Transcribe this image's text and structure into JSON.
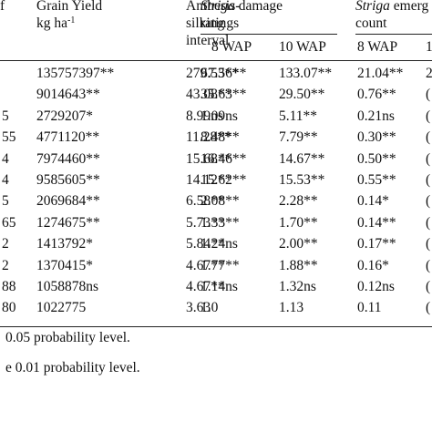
{
  "header": {
    "col0_top": "f",
    "grain_yield_line1": "Grain Yield",
    "grain_yield_line2": "kg ha",
    "grain_yield_sup": "-1",
    "asi_line1": "Anthesis-",
    "asi_line2": "silking",
    "asi_line3": "interval",
    "striga_damage_italic": "Striga",
    "striga_damage_rest": " damage",
    "striga_damage_line2": "ratings",
    "striga_emerg_italic": "Striga",
    "striga_emerg_rest": " emerg",
    "striga_emerg_line2": "count",
    "sub_8wap_a": "8 WAP",
    "sub_10wap_a": "10 WAP",
    "sub_8wap_b": "8 WAP",
    "sub_cut": "1"
  },
  "rows": [
    {
      "c0": "",
      "c1": "135757397**",
      "c2": "279.53**",
      "c3": "67.56**",
      "c4": "133.07**",
      "c5": "21.04**",
      "c6": "2"
    },
    {
      "c0": "",
      "c1": "9014643**",
      "c2": "43.08**",
      "c3": "35.63**",
      "c4": "29.50**",
      "c5": "0.76**",
      "c6": "("
    },
    {
      "c0": "5",
      "c1": "2729207*",
      "c2": "8.99ns",
      "c3": "1.09ns",
      "c4": "5.11**",
      "c5": "0.21ns",
      "c6": "("
    },
    {
      "c0": "55",
      "c1": "4771120**",
      "c2": "11.28**",
      "c3": "8.48**",
      "c4": "7.79**",
      "c5": "0.30**",
      "c6": "("
    },
    {
      "c0": "4",
      "c1": "7974460**",
      "c2": "15.68**",
      "c3": "16.46**",
      "c4": "14.67**",
      "c5": "0.50**",
      "c6": "("
    },
    {
      "c0": "4",
      "c1": "9585605**",
      "c2": "14.12**",
      "c3": "15.62**",
      "c4": "15.53**",
      "c5": "0.55**",
      "c6": "("
    },
    {
      "c0": "5",
      "c1": "2069684**",
      "c2": "6.58**",
      "c3": "2.08**",
      "c4": "2.28**",
      "c5": "0.14*",
      "c6": "("
    },
    {
      "c0": "65",
      "c1": "1274675**",
      "c2": "5.73**",
      "c3": "1.33**",
      "c4": "1.70**",
      "c5": "0.14**",
      "c6": "("
    },
    {
      "c0": "2",
      "c1": "1413792*",
      "c2": "5.84**",
      "c3": "1.24ns",
      "c4": "2.00**",
      "c5": "0.17**",
      "c6": "("
    },
    {
      "c0": "2",
      "c1": "1370415*",
      "c2": "4.67**",
      "c3": "1.77**",
      "c4": "1.88**",
      "c5": "0.16*",
      "c6": "("
    },
    {
      "c0": "88",
      "c1": "1058878ns",
      "c2": "4.67**",
      "c3": "1.14ns",
      "c4": "1.32ns",
      "c5": "0.12ns",
      "c6": "("
    },
    {
      "c0": "80",
      "c1": "1022775",
      "c2": "3.63",
      "c3": "1.0",
      "c4": "1.13",
      "c5": "0.11",
      "c6": "("
    }
  ],
  "footnotes": {
    "line1": "0.05 probability level.",
    "line2": "e 0.01 probability level."
  }
}
